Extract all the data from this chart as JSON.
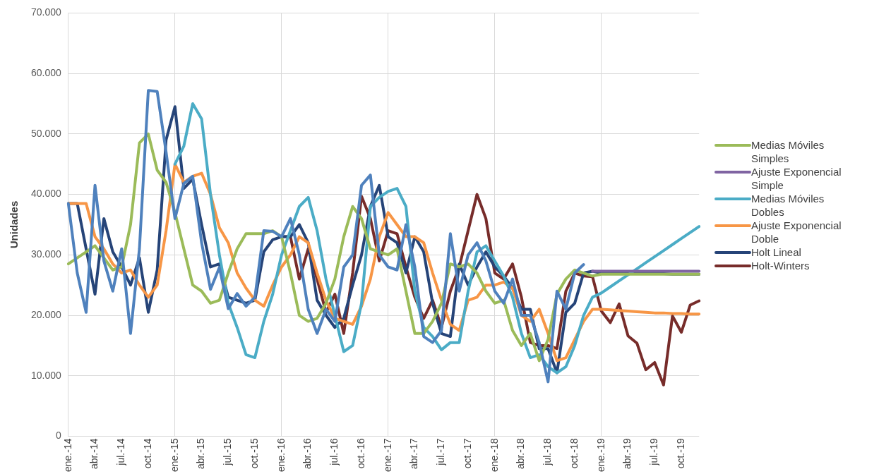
{
  "chart_data": {
    "type": "line",
    "ylabel": "Unidades",
    "categories": [
      "ene.-14",
      null,
      null,
      "abr.-14",
      null,
      null,
      "jul.-14",
      null,
      null,
      "oct.-14",
      null,
      null,
      "ene.-15",
      null,
      null,
      "abr.-15",
      null,
      null,
      "jul.-15",
      null,
      null,
      "oct.-15",
      null,
      null,
      "ene.-16",
      null,
      null,
      "abr.-16",
      null,
      null,
      "jul.-16",
      null,
      null,
      "oct.-16",
      null,
      null,
      "ene.-17",
      null,
      null,
      "abr.-17",
      null,
      null,
      "jul.-17",
      null,
      null,
      "oct.-17",
      null,
      null,
      "ene.-18",
      null,
      null,
      "abr.-18",
      null,
      null,
      "jul.-18",
      null,
      null,
      "oct.-18",
      null,
      null,
      "ene.-19",
      null,
      null,
      "abr.-19",
      null,
      null,
      "jul.-19",
      null,
      null,
      "oct.-19",
      null,
      null
    ],
    "ylim": [
      0,
      70000
    ],
    "yticks": [
      {
        "value": 0,
        "label": "0"
      },
      {
        "value": 10000,
        "label": "10.000"
      },
      {
        "value": 20000,
        "label": "20.000"
      },
      {
        "value": 30000,
        "label": "30.000"
      },
      {
        "value": 40000,
        "label": "40.000"
      },
      {
        "value": 50000,
        "label": "50.000"
      },
      {
        "value": 60000,
        "label": "60.000"
      },
      {
        "value": 70000,
        "label": "70.000"
      }
    ],
    "grid": true,
    "legend": "right",
    "marker": "none",
    "line_style": "solid",
    "series": [
      {
        "color": "#4f81bd",
        "values": [
          38500,
          27000,
          20500,
          41500,
          29000,
          24000,
          31000,
          17000,
          31000,
          57200,
          57000,
          47000,
          36000,
          41800,
          43000,
          32000,
          24300,
          27900,
          21100,
          23600,
          21500,
          23000,
          34000,
          33900,
          33000,
          36000,
          30000,
          21000,
          17000,
          21000,
          19000,
          28000,
          30000,
          41500,
          43200,
          30000,
          28000,
          27500,
          35000,
          28000,
          16500,
          15500,
          17500,
          33500,
          24000,
          30000,
          32000,
          29000,
          24000,
          22000,
          26000,
          20000,
          20000,
          15500,
          9000,
          24000,
          21000,
          27000,
          28400,
          null,
          null,
          null,
          null,
          null,
          null,
          null,
          null,
          null,
          null,
          null,
          null,
          null
        ]
      },
      {
        "name": "Medias Móviles Simples",
        "color": "#9bbb59",
        "values": [
          28500,
          29500,
          30500,
          31500,
          29500,
          27500,
          28000,
          35000,
          48500,
          50000,
          44000,
          42000,
          37000,
          31000,
          25000,
          24000,
          22000,
          22500,
          27000,
          31000,
          33500,
          33500,
          33500,
          34000,
          33000,
          27000,
          20000,
          19000,
          19500,
          22000,
          26000,
          33000,
          38000,
          36000,
          31000,
          30500,
          30000,
          31000,
          24000,
          17000,
          17000,
          19000,
          22000,
          28500,
          28000,
          28500,
          27000,
          24000,
          22000,
          22500,
          17500,
          15000,
          17000,
          12500,
          16000,
          23500,
          26000,
          27500,
          27000,
          26500,
          26800,
          26800,
          26800,
          26800,
          26800,
          26800,
          26800,
          26800,
          26800,
          26800,
          26800,
          26800
        ]
      },
      {
        "name": "Ajuste Exponencial Simple",
        "color": "#8064a2",
        "values": [
          null,
          null,
          null,
          null,
          null,
          null,
          null,
          null,
          null,
          null,
          null,
          null,
          null,
          null,
          null,
          null,
          null,
          null,
          null,
          null,
          null,
          null,
          null,
          null,
          null,
          null,
          null,
          null,
          null,
          null,
          null,
          null,
          null,
          null,
          null,
          null,
          null,
          null,
          null,
          null,
          null,
          null,
          null,
          null,
          null,
          null,
          null,
          null,
          null,
          null,
          null,
          null,
          null,
          null,
          null,
          null,
          null,
          null,
          null,
          27300,
          27300,
          27300,
          27300,
          27300,
          27300,
          27300,
          27300,
          27300,
          27300,
          27300,
          27300,
          27300
        ]
      },
      {
        "name": "Medias Móviles Dobles",
        "color": "#4bacc6",
        "values": [
          null,
          null,
          null,
          null,
          null,
          null,
          null,
          null,
          null,
          null,
          null,
          null,
          45000,
          48000,
          55000,
          52500,
          40000,
          30000,
          22000,
          18000,
          13500,
          13000,
          19000,
          23500,
          30000,
          34000,
          38000,
          39500,
          34000,
          26000,
          20000,
          14000,
          15000,
          22000,
          38000,
          39500,
          40500,
          41000,
          38000,
          24000,
          18000,
          16500,
          14300,
          15500,
          15500,
          24000,
          30500,
          31500,
          29000,
          26500,
          23000,
          17000,
          13000,
          13500,
          11500,
          10500,
          11500,
          15000,
          20000,
          23000,
          23700,
          24700,
          25700,
          26700,
          27700,
          28700,
          29700,
          30700,
          31700,
          32700,
          33700,
          34700
        ]
      },
      {
        "name": "Ajuste Exponencial Doble",
        "color": "#f79646",
        "values": [
          38500,
          38500,
          38500,
          33000,
          31000,
          28500,
          27000,
          27500,
          25000,
          23000,
          25000,
          34000,
          45000,
          42000,
          43000,
          43500,
          40000,
          34500,
          32000,
          27000,
          24500,
          22500,
          21500,
          25000,
          28000,
          30000,
          33000,
          32000,
          27000,
          22500,
          19500,
          19000,
          18500,
          21500,
          26000,
          33000,
          37000,
          35000,
          33000,
          33000,
          32000,
          27000,
          22500,
          18500,
          17500,
          22500,
          23000,
          25000,
          25000,
          25500,
          24500,
          20000,
          19000,
          21000,
          17000,
          12500,
          13000,
          16000,
          19000,
          21000,
          21000,
          20900,
          20800,
          20700,
          20600,
          20500,
          20400,
          20400,
          20300,
          20300,
          20200,
          20200
        ]
      },
      {
        "name": "Holt Lineal",
        "color": "#264478",
        "values": [
          38500,
          38500,
          31000,
          23500,
          36000,
          30500,
          28000,
          25000,
          29500,
          20500,
          27500,
          49000,
          54500,
          41000,
          42500,
          35000,
          28000,
          28500,
          23000,
          22500,
          22000,
          22500,
          30500,
          32500,
          33000,
          33000,
          35000,
          32000,
          22500,
          20000,
          18000,
          19500,
          25000,
          30000,
          38000,
          41500,
          33000,
          32000,
          27000,
          33000,
          30500,
          22000,
          17000,
          16500,
          28500,
          25000,
          28000,
          30500,
          28000,
          26500,
          24500,
          21000,
          21000,
          14500,
          14500,
          10500,
          20500,
          22000,
          27000,
          27300,
          27000,
          27000,
          27000,
          27000,
          26900,
          26900,
          26900,
          26900,
          26800,
          26800,
          26800,
          26800
        ]
      },
      {
        "name": "Holt-Winters",
        "color": "#772c2a",
        "values": [
          null,
          null,
          null,
          null,
          null,
          null,
          null,
          null,
          null,
          null,
          null,
          null,
          null,
          null,
          null,
          null,
          null,
          null,
          null,
          null,
          null,
          null,
          null,
          null,
          33000,
          33000,
          26000,
          31000,
          26000,
          20500,
          23500,
          17000,
          27000,
          39700,
          36000,
          29000,
          34000,
          33500,
          28000,
          23000,
          19500,
          22500,
          18000,
          24000,
          28000,
          34000,
          40000,
          36000,
          27000,
          26000,
          28500,
          23000,
          15500,
          15000,
          15000,
          14500,
          24000,
          27000,
          26500,
          26400,
          20700,
          18800,
          21900,
          16600,
          15400,
          11000,
          12200,
          8500,
          19900,
          17200,
          21700,
          22400
        ]
      }
    ]
  }
}
